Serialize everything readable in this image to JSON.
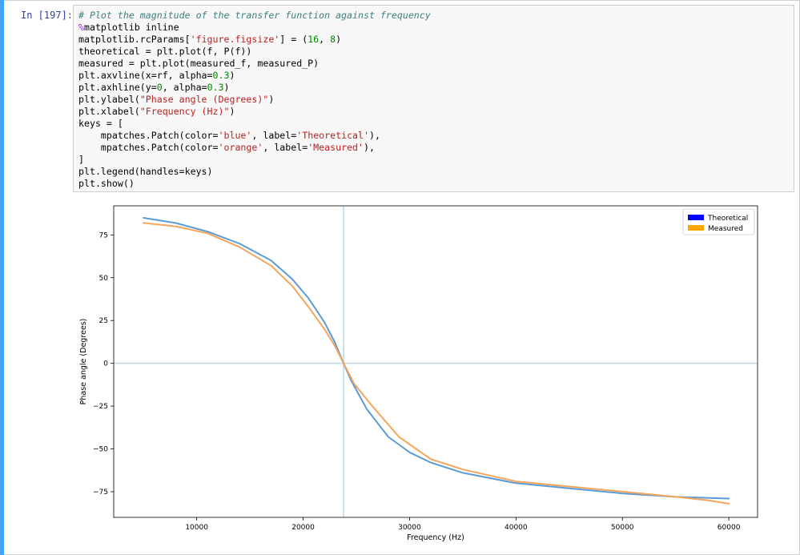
{
  "cell": {
    "prompt": "In [197]:",
    "code_lines": [
      [
        {
          "t": "# Plot the magnitude of the transfer function against frequency",
          "c": "cm"
        }
      ],
      [
        {
          "t": "%",
          "c": "mg"
        },
        {
          "t": "matplotlib inline",
          "c": ""
        }
      ],
      [
        {
          "t": "matplotlib.rcParams[",
          "c": ""
        },
        {
          "t": "'figure.figsize'",
          "c": "st"
        },
        {
          "t": "] = (",
          "c": ""
        },
        {
          "t": "16",
          "c": "nu"
        },
        {
          "t": ", ",
          "c": ""
        },
        {
          "t": "8",
          "c": "nu"
        },
        {
          "t": ")",
          "c": ""
        }
      ],
      [
        {
          "t": "theoretical = plt.plot(f, P(f))",
          "c": ""
        }
      ],
      [
        {
          "t": "measured = plt.plot(measured_f, measured_P)",
          "c": ""
        }
      ],
      [
        {
          "t": "plt.axvline(x=rf, alpha=",
          "c": ""
        },
        {
          "t": "0.3",
          "c": "nu"
        },
        {
          "t": ")",
          "c": ""
        }
      ],
      [
        {
          "t": "plt.axhline(y=",
          "c": ""
        },
        {
          "t": "0",
          "c": "nu"
        },
        {
          "t": ", alpha=",
          "c": ""
        },
        {
          "t": "0.3",
          "c": "nu"
        },
        {
          "t": ")",
          "c": ""
        }
      ],
      [
        {
          "t": "plt.ylabel(",
          "c": ""
        },
        {
          "t": "\"Phase angle (Degrees)\"",
          "c": "st"
        },
        {
          "t": ")",
          "c": ""
        }
      ],
      [
        {
          "t": "plt.xlabel(",
          "c": ""
        },
        {
          "t": "\"Frequency (Hz)\"",
          "c": "st"
        },
        {
          "t": ")",
          "c": ""
        }
      ],
      [
        {
          "t": "keys = [",
          "c": ""
        }
      ],
      [
        {
          "t": "    mpatches.Patch(color=",
          "c": ""
        },
        {
          "t": "'blue'",
          "c": "st"
        },
        {
          "t": ", label=",
          "c": ""
        },
        {
          "t": "'Theoretical'",
          "c": "st"
        },
        {
          "t": "),",
          "c": ""
        }
      ],
      [
        {
          "t": "    mpatches.Patch(color=",
          "c": ""
        },
        {
          "t": "'orange'",
          "c": "st"
        },
        {
          "t": ", label=",
          "c": ""
        },
        {
          "t": "'Measured'",
          "c": "st"
        },
        {
          "t": "),",
          "c": ""
        }
      ],
      [
        {
          "t": "]",
          "c": ""
        }
      ],
      [
        {
          "t": "plt.legend(handles=keys)",
          "c": ""
        }
      ],
      [
        {
          "t": "plt.show()",
          "c": ""
        }
      ]
    ]
  },
  "chart_data": {
    "type": "line",
    "xlabel": "Frequency (Hz)",
    "ylabel": "Phase angle (Degrees)",
    "xlim": [
      2200,
      62700
    ],
    "ylim": [
      -90,
      92
    ],
    "xticks": [
      10000,
      20000,
      30000,
      40000,
      50000,
      60000
    ],
    "xtick_labels": [
      "10000",
      "20000",
      "30000",
      "40000",
      "50000",
      "60000"
    ],
    "yticks": [
      75,
      50,
      25,
      0,
      -25,
      -50,
      -75
    ],
    "ytick_labels": [
      "75",
      "50",
      "25",
      "0",
      "−25",
      "−50",
      "−75"
    ],
    "axvline": 23800,
    "axhline": 0,
    "legend_position": "top-right",
    "legend": [
      {
        "label": "Theoretical",
        "color": "#0000ff"
      },
      {
        "label": "Measured",
        "color": "#ffa500"
      }
    ],
    "series": [
      {
        "color": "#5b9bd5",
        "x": [
          5000,
          8000,
          11000,
          14000,
          17000,
          19000,
          20500,
          22000,
          23000,
          23800,
          24500,
          26000,
          28000,
          30000,
          32000,
          35000,
          40000,
          45000,
          50000,
          55000,
          60000
        ],
        "y": [
          85,
          82,
          77,
          70,
          60,
          49,
          38,
          24,
          12,
          0,
          -10,
          -27,
          -43,
          -52,
          -58,
          -64,
          -70,
          -73,
          -76,
          -78,
          -79
        ]
      },
      {
        "color": "#f5a55a",
        "x": [
          5000,
          8000,
          11000,
          14000,
          17000,
          19000,
          20500,
          22000,
          23000,
          23800,
          24800,
          26500,
          29000,
          32000,
          35000,
          40000,
          45000,
          50000,
          55000,
          58000,
          60000
        ],
        "y": [
          82,
          80,
          76,
          68,
          57,
          45,
          33,
          20,
          10,
          0,
          -12,
          -25,
          -43,
          -56,
          -62,
          -69,
          -72,
          -75,
          -78,
          -80,
          -82
        ]
      }
    ]
  }
}
